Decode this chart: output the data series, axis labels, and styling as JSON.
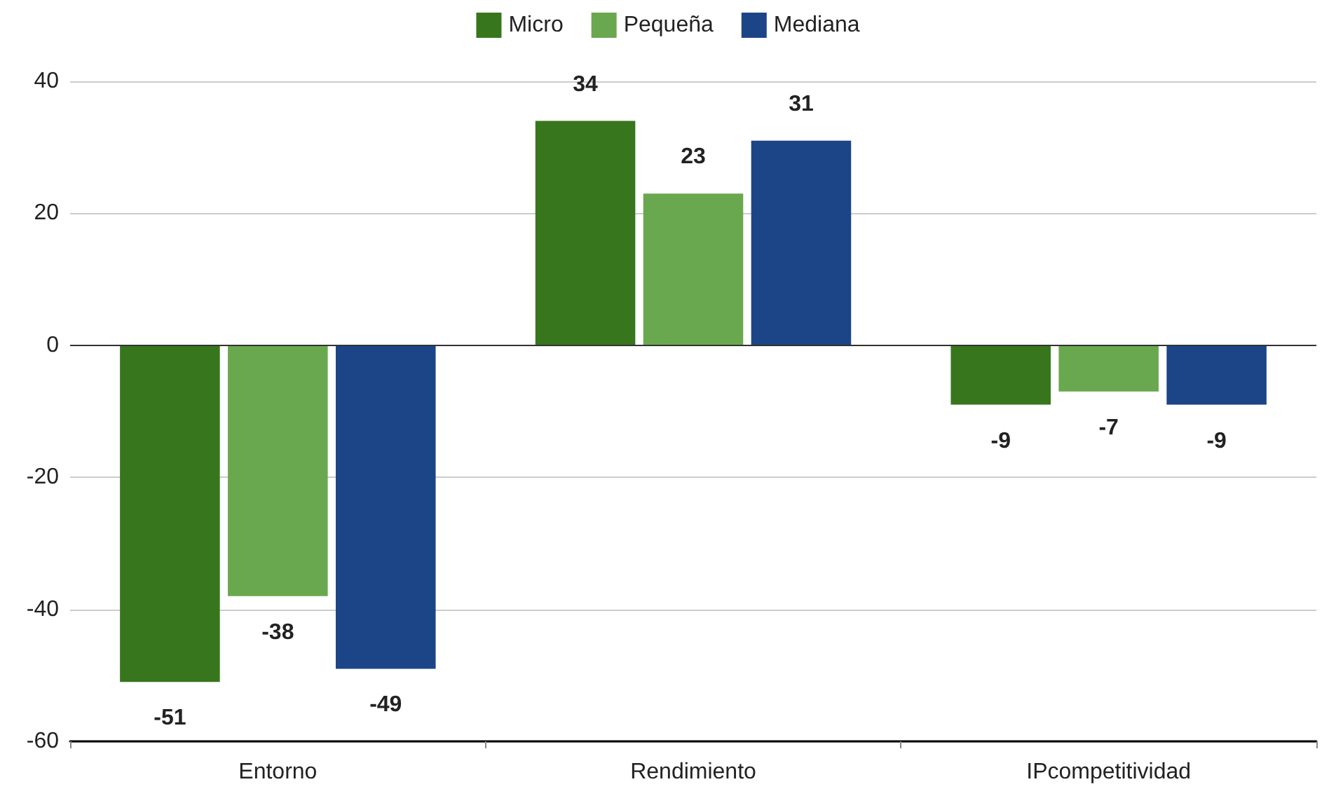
{
  "chart_data": {
    "type": "bar",
    "categories": [
      "Entorno",
      "Rendimiento",
      "IPcompetitividad"
    ],
    "series": [
      {
        "name": "Micro",
        "color": "#38761d",
        "values": [
          -51,
          34,
          -9
        ]
      },
      {
        "name": "Pequeña",
        "color": "#6aa84f",
        "values": [
          -38,
          23,
          -7
        ]
      },
      {
        "name": "Mediana",
        "color": "#1c4587",
        "values": [
          -49,
          31,
          -9
        ]
      }
    ],
    "ylim": [
      -60,
      40
    ],
    "yticks": [
      -60,
      -40,
      -20,
      0,
      20,
      40
    ],
    "grid": "y",
    "legend": "top",
    "data_labels": true
  }
}
